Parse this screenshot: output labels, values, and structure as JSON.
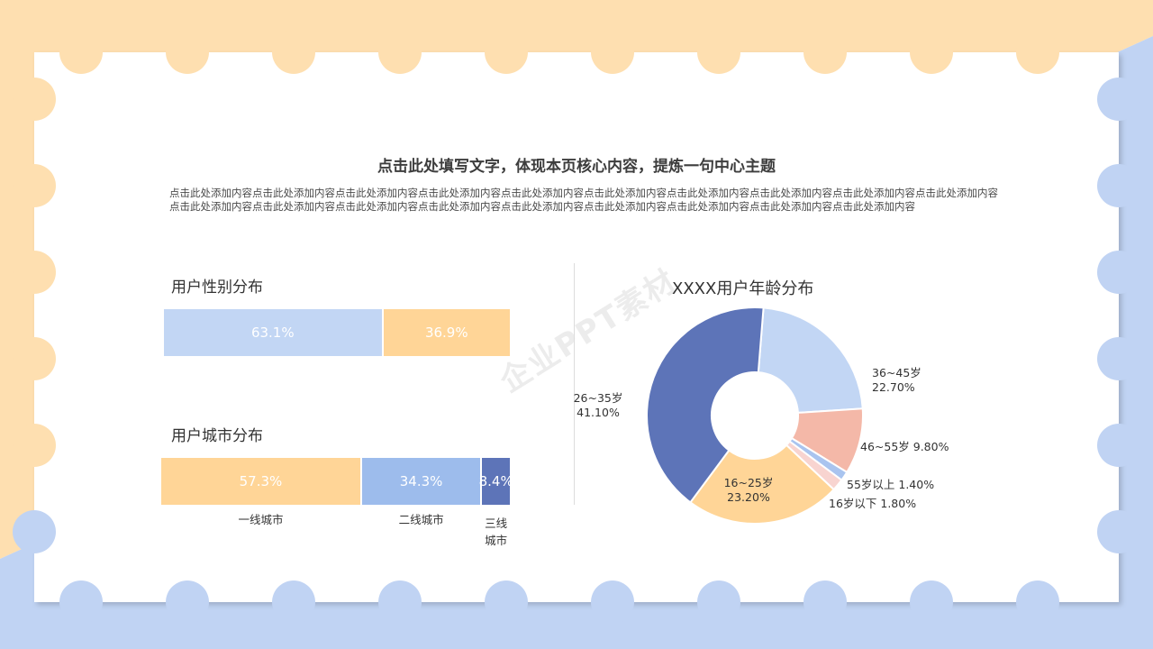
{
  "headline": "点击此处填写文字，体现本页核心内容，提炼一句中心主题",
  "body_text": "点击此处添加内容点击此处添加内容点击此处添加内容点击此处添加内容点击此处添加内容点击此处添加内容点击此处添加内容点击此处添加内容点击此处添加内容点击此处添加内容点击此处添加内容点击此处添加内容点击此处添加内容点击此处添加内容点击此处添加内容点击此处添加内容点击此处添加内容点击此处添加内容点击此处添加内容",
  "watermark": "企业PPT素材",
  "colors": {
    "peach": "#FFD597",
    "light_blue": "#C2D6F4",
    "mid_blue": "#9DBCEC",
    "dark_blue": "#5D74B8",
    "salmon": "#F4B8A8",
    "pale_pink": "#F8D4D0",
    "pale_blue": "#A9C4EF",
    "bg_peach": "#FEDFB0",
    "bg_blue": "#C0D3F3"
  },
  "chart_data": [
    {
      "type": "bar",
      "title": "用户性别分布",
      "stacked": true,
      "series": [
        {
          "value": 63.1,
          "label": "63.1%",
          "color": "#C2D6F4"
        },
        {
          "value": 36.9,
          "label": "36.9%",
          "color": "#FFD597"
        }
      ]
    },
    {
      "type": "bar",
      "title": "用户城市分布",
      "stacked": true,
      "categories": [
        "一线城市",
        "二线城市",
        "三线城市"
      ],
      "series": [
        {
          "value": 57.3,
          "label": "57.3%",
          "color": "#FFD597"
        },
        {
          "value": 34.3,
          "label": "34.3%",
          "color": "#9DBCEC"
        },
        {
          "value": 8.4,
          "label": "8.4%",
          "color": "#5D74B8"
        }
      ]
    },
    {
      "type": "pie",
      "donut": true,
      "title": "XXXX用户年龄分布",
      "slices": [
        {
          "name": "36~45岁",
          "value": 22.7,
          "label": "22.70%",
          "color": "#C2D6F4"
        },
        {
          "name": "46~55岁",
          "value": 9.8,
          "label": "9.80%",
          "color": "#F4B8A8"
        },
        {
          "name": "55岁以上",
          "value": 1.4,
          "label": "1.40%",
          "color": "#A9C4EF"
        },
        {
          "name": "16岁以下",
          "value": 1.8,
          "label": "1.80%",
          "color": "#F8D4D0"
        },
        {
          "name": "16~25岁",
          "value": 23.2,
          "label": "23.20%",
          "color": "#FFD597"
        },
        {
          "name": "26~35岁",
          "value": 41.1,
          "label": "41.10%",
          "color": "#5D74B8"
        }
      ]
    }
  ]
}
